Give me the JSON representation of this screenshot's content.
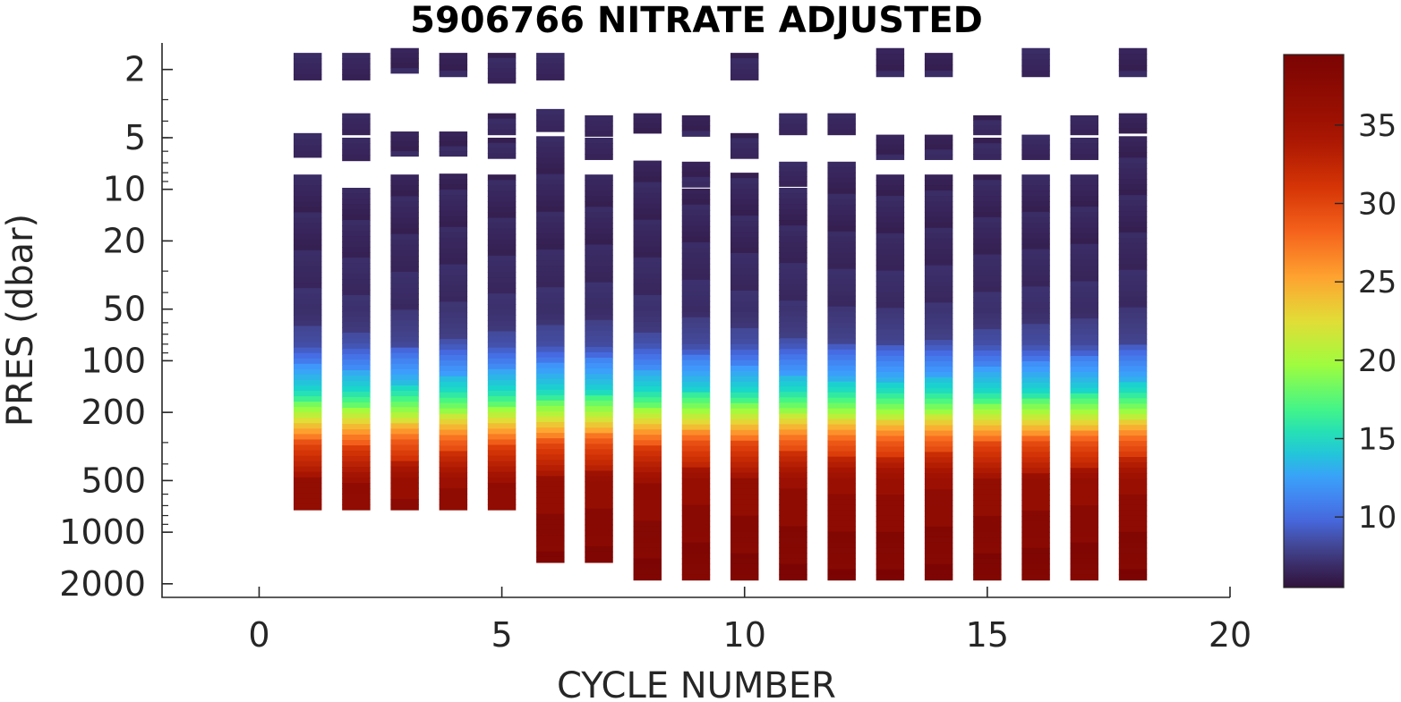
{
  "chart_data": {
    "type": "heatmap",
    "title": "5906766  NITRATE ADJUSTED",
    "xlabel": "CYCLE NUMBER",
    "ylabel": "PRES (dbar)",
    "xlim": [
      -2,
      20
    ],
    "ylim": [
      1.4,
      2400
    ],
    "y_scale": "log",
    "y_reversed": true,
    "x_ticks": [
      0,
      5,
      10,
      15,
      20
    ],
    "y_ticks": [
      2,
      5,
      10,
      20,
      50,
      100,
      200,
      500,
      1000,
      2000
    ],
    "grid": false,
    "colorbar": {
      "colormap": "turbo",
      "clim": [
        5.5,
        39.5
      ],
      "ticks": [
        10,
        15,
        20,
        25,
        30,
        35
      ],
      "location": "right"
    },
    "profile_value_vs_pressure": {
      "pres": [
        2,
        5,
        10,
        20,
        50,
        80,
        100,
        150,
        200,
        300,
        500,
        1000,
        2000
      ],
      "nitrate": [
        6.5,
        6.5,
        6.5,
        6.5,
        7,
        8.5,
        11,
        15,
        20,
        29,
        36,
        38,
        39
      ]
    },
    "profiles": [
      {
        "cycle": 1,
        "segments": [
          [
            1.6,
            2.3
          ],
          [
            4.7,
            6.5
          ],
          [
            8.2,
            740
          ]
        ]
      },
      {
        "cycle": 2,
        "segments": [
          [
            1.6,
            2.3
          ],
          [
            3.6,
            4.8
          ],
          [
            5.0,
            6.8
          ],
          [
            9.8,
            740
          ]
        ]
      },
      {
        "cycle": 3,
        "segments": [
          [
            1.5,
            2.1
          ],
          [
            4.6,
            6.4
          ],
          [
            8.2,
            740
          ]
        ]
      },
      {
        "cycle": 4,
        "segments": [
          [
            1.6,
            2.2
          ],
          [
            4.6,
            6.4
          ],
          [
            8.1,
            740
          ]
        ]
      },
      {
        "cycle": 5,
        "segments": [
          [
            1.6,
            2.4
          ],
          [
            3.6,
            4.8
          ],
          [
            5.0,
            6.6
          ],
          [
            8.2,
            740
          ]
        ]
      },
      {
        "cycle": 6,
        "segments": [
          [
            1.6,
            2.3
          ],
          [
            3.4,
            4.6
          ],
          [
            4.9,
            1500
          ]
        ]
      },
      {
        "cycle": 7,
        "segments": [
          [
            3.7,
            4.9
          ],
          [
            5.0,
            6.7
          ],
          [
            8.2,
            1500
          ]
        ]
      },
      {
        "cycle": 8,
        "segments": [
          [
            3.6,
            4.7
          ],
          [
            6.8,
            1900
          ]
        ]
      },
      {
        "cycle": 9,
        "segments": [
          [
            3.7,
            4.9
          ],
          [
            6.9,
            9.7
          ],
          [
            9.9,
            1900
          ]
        ]
      },
      {
        "cycle": 10,
        "segments": [
          [
            1.6,
            2.3
          ],
          [
            4.7,
            6.6
          ],
          [
            8.0,
            1900
          ]
        ]
      },
      {
        "cycle": 11,
        "segments": [
          [
            3.6,
            4.8
          ],
          [
            6.9,
            9.6
          ],
          [
            9.8,
            1900
          ]
        ]
      },
      {
        "cycle": 12,
        "segments": [
          [
            3.6,
            4.8
          ],
          [
            6.9,
            1900
          ]
        ]
      },
      {
        "cycle": 13,
        "segments": [
          [
            1.5,
            2.2
          ],
          [
            4.8,
            6.7
          ],
          [
            8.2,
            1900
          ]
        ]
      },
      {
        "cycle": 14,
        "segments": [
          [
            1.6,
            2.2
          ],
          [
            4.8,
            6.7
          ],
          [
            8.2,
            1900
          ]
        ]
      },
      {
        "cycle": 15,
        "segments": [
          [
            3.7,
            4.8
          ],
          [
            5.0,
            6.7
          ],
          [
            8.2,
            1900
          ]
        ]
      },
      {
        "cycle": 16,
        "segments": [
          [
            1.5,
            2.2
          ],
          [
            4.8,
            6.7
          ],
          [
            8.2,
            1900
          ]
        ]
      },
      {
        "cycle": 17,
        "segments": [
          [
            3.7,
            4.8
          ],
          [
            5.0,
            6.7
          ],
          [
            8.2,
            1900
          ]
        ]
      },
      {
        "cycle": 18,
        "segments": [
          [
            1.5,
            2.2
          ],
          [
            3.6,
            4.7
          ],
          [
            4.9,
            1900
          ]
        ]
      }
    ]
  }
}
